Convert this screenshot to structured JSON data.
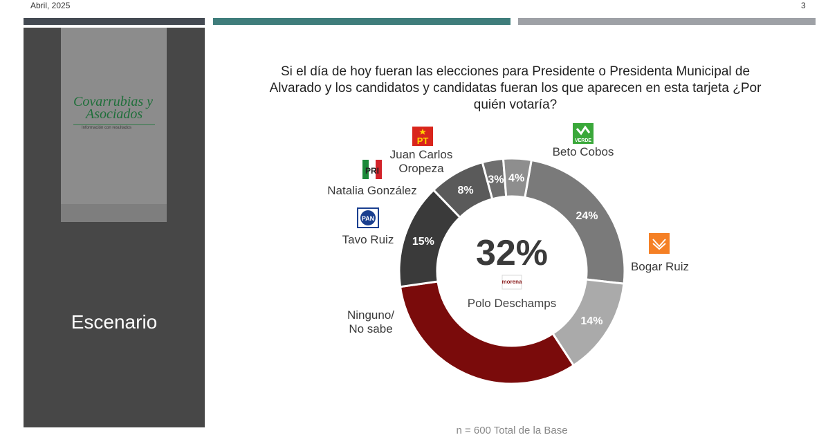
{
  "header": {
    "date": "Abril, 2025",
    "page_number": "3"
  },
  "sidebar": {
    "logo_line1": "Covarrubias y",
    "logo_line2": "Asociados",
    "logo_tagline": "Información con resultados",
    "scenario_label": "Escenario"
  },
  "question": "Si el día de hoy fueran las elecciones para Presidente o Presidenta Municipal de Alvarado y los candidatos y candidatas fueran los que aparecen en esta tarjeta ¿Por quién votaría?",
  "footnote": "n = 600 Total de la Base",
  "colors": {
    "accent_dark": "#444a52",
    "accent_teal": "#3f7d7b",
    "accent_gray": "#9ea1a6",
    "morena": "#7a0b0b"
  },
  "chart_data": {
    "type": "pie",
    "subtype": "donut",
    "center_value": "32%",
    "center_label": "Polo Deschamps",
    "slices": [
      {
        "label": "Beto Cobos",
        "party": "VERDE",
        "value": 24,
        "display": "24%",
        "color": "#7a7a7a"
      },
      {
        "label": "Bogar Ruiz",
        "party": "MC",
        "value": 14,
        "display": "14%",
        "color": "#aaaaaa"
      },
      {
        "label": "Polo Deschamps",
        "party": "morena",
        "value": 32,
        "display": "",
        "color": "#7a0b0b"
      },
      {
        "label": "Ninguno/\nNo sabe",
        "party": "",
        "value": 15,
        "display": "15%",
        "color": "#3a3a3a"
      },
      {
        "label": "Tavo Ruiz",
        "party": "PAN",
        "value": 8,
        "display": "8%",
        "color": "#5a5a5a"
      },
      {
        "label": "Natalia González",
        "party": "PRI",
        "value": 3,
        "display": "3%",
        "color": "#6e6e6e"
      },
      {
        "label": "Juan Carlos\nOropeza",
        "party": "PT",
        "value": 4,
        "display": "4%",
        "color": "#8e8e8e"
      }
    ]
  }
}
